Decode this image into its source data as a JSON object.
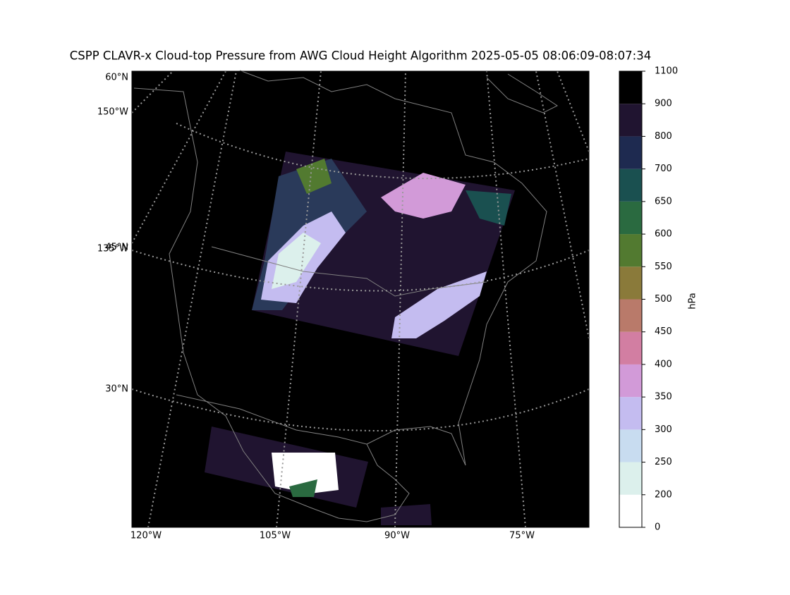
{
  "title": "CSPP CLAVR-x Cloud-top Pressure from AWG Cloud Height Algorithm 2025-05-05 08:06:09-08:07:34",
  "map": {
    "lat_labels": [
      "60°N",
      "45°N",
      "30°N"
    ],
    "lon_labels_left": [
      "150°W",
      "135°W"
    ],
    "lon_labels_bottom": [
      "120°W",
      "105°W",
      "90°W",
      "75°W"
    ]
  },
  "colorbar": {
    "label": "hPa",
    "ticks": [
      0,
      200,
      250,
      300,
      350,
      400,
      450,
      500,
      550,
      600,
      650,
      700,
      800,
      900,
      1100
    ],
    "colors": [
      "#ffffff",
      "#dcf0ec",
      "#c8dcf0",
      "#c4bcf0",
      "#d29ad8",
      "#d27ea2",
      "#b97a6a",
      "#8a7a3a",
      "#527a30",
      "#2a6a40",
      "#1a5050",
      "#1e2a50",
      "#201430",
      "#000000"
    ]
  }
}
